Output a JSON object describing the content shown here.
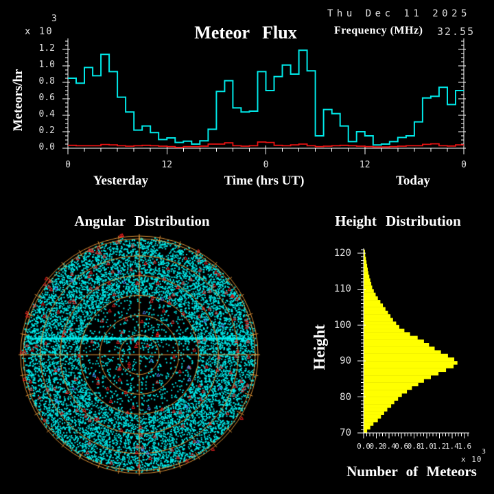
{
  "header": {
    "title": "Meteor Flux",
    "date": "Thu Dec 11 2025",
    "frequency_label": "Frequency (MHz)",
    "frequency_value": "32.55"
  },
  "chart_data": [
    {
      "id": "flux",
      "type": "line",
      "subtype": "step",
      "title": "Meteor Flux",
      "ylabel": "Meteors/hr",
      "y_scale_base": "x 10",
      "y_scale_exp": "3",
      "ylim": [
        0,
        1.2
      ],
      "ytick_labels": [
        "1.2",
        "1.0",
        "0.8",
        "0.6",
        "0.4",
        "0.2",
        "0.0"
      ],
      "x_hours_span": 48,
      "xtick_major_hours": [
        0,
        12,
        24,
        36,
        48
      ],
      "xtick_labels": [
        "0",
        "12",
        "0",
        "12",
        "0"
      ],
      "xlabel_left": "Yesterday",
      "xlabel_center": "Time (hrs UT)",
      "xlabel_right": "Today",
      "grid": false,
      "series": [
        {
          "name": "meteor-rate-cyan",
          "color": "#00E8E8",
          "units": "x10^3 meteors/hr, hourly bins",
          "values": [
            0.85,
            0.79,
            0.98,
            0.88,
            1.14,
            0.93,
            0.62,
            0.44,
            0.22,
            0.27,
            0.19,
            0.105,
            0.125,
            0.07,
            0.085,
            0.05,
            0.09,
            0.23,
            0.69,
            0.82,
            0.49,
            0.44,
            0.45,
            0.93,
            0.7,
            0.87,
            1.01,
            0.9,
            1.19,
            0.94,
            0.15,
            0.47,
            0.42,
            0.27,
            0.08,
            0.2,
            0.15,
            0.04,
            0.05,
            0.08,
            0.13,
            0.15,
            0.32,
            0.61,
            0.63,
            0.74,
            0.53,
            0.7
          ]
        },
        {
          "name": "baseline-rate-red",
          "color": "#E81212",
          "units": "x10^3 meteors/hr, hourly bins",
          "values": [
            0.035,
            0.03,
            0.03,
            0.03,
            0.045,
            0.04,
            0.03,
            0.025,
            0.03,
            0.035,
            0.03,
            0.025,
            0.02,
            0.01,
            0.02,
            0.02,
            0.025,
            0.05,
            0.05,
            0.065,
            0.03,
            0.025,
            0.03,
            0.075,
            0.07,
            0.035,
            0.03,
            0.04,
            0.05,
            0.03,
            0.02,
            0.025,
            0.03,
            0.035,
            0.03,
            0.025,
            0.02,
            0.015,
            0.015,
            0.02,
            0.025,
            0.03,
            0.03,
            0.047,
            0.053,
            0.03,
            0.027,
            0.04
          ]
        }
      ]
    },
    {
      "id": "angular",
      "type": "scatter",
      "subtype": "polar-sky-map",
      "title": "Angular Distribution",
      "grid_rings": 5,
      "double_outer_ring": true,
      "grid_color": "#E39536",
      "point_colors": {
        "cyan": "#00E8E8",
        "red": "#F02020",
        "blue": "#5588FF"
      },
      "point_counts": {
        "cyan": 9700,
        "red": 185,
        "blue": 22
      },
      "dense_band": "horizontal streak just above center"
    },
    {
      "id": "height",
      "type": "bar",
      "orientation": "horizontal",
      "title": "Height Distribution",
      "ylabel": "Height",
      "xlabel": "Number of Meteors",
      "x_scale_base": "x 10",
      "x_scale_exp": "3",
      "bar_color": "#FFFF00",
      "xlim": [
        0,
        1.6
      ],
      "ytick_labels": [
        "120",
        "110",
        "100",
        "90",
        "80",
        "70"
      ],
      "xtick_labels": [
        "0.0",
        "0.2",
        "0.4",
        "0.6",
        "0.8",
        "1.0",
        "1.2",
        "1.4",
        "1.6"
      ],
      "heights_km": [
        70,
        71,
        72,
        73,
        74,
        75,
        76,
        77,
        78,
        79,
        80,
        81,
        82,
        83,
        84,
        85,
        86,
        87,
        88,
        89,
        90,
        91,
        92,
        93,
        94,
        95,
        96,
        97,
        98,
        99,
        100,
        101,
        102,
        103,
        104,
        105,
        106,
        107,
        108,
        109,
        110,
        111,
        112,
        113,
        114,
        115,
        116,
        117,
        118,
        119,
        120
      ],
      "values": [
        0.05,
        0.1,
        0.15,
        0.22,
        0.27,
        0.32,
        0.37,
        0.43,
        0.48,
        0.54,
        0.6,
        0.68,
        0.76,
        0.86,
        0.95,
        1.06,
        1.18,
        1.3,
        1.42,
        1.48,
        1.43,
        1.33,
        1.22,
        1.12,
        1.03,
        0.95,
        0.85,
        0.73,
        0.64,
        0.56,
        0.51,
        0.46,
        0.42,
        0.38,
        0.34,
        0.3,
        0.26,
        0.22,
        0.185,
        0.155,
        0.13,
        0.115,
        0.1,
        0.085,
        0.07,
        0.06,
        0.05,
        0.04,
        0.03,
        0.02,
        0.015
      ]
    }
  ]
}
